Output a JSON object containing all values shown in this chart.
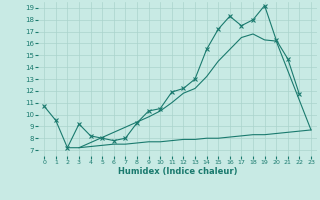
{
  "xlabel": "Humidex (Indice chaleur)",
  "bg_color": "#c8eae4",
  "line_color": "#1a7a6e",
  "grid_color": "#aad4cc",
  "xlim": [
    -0.5,
    23.5
  ],
  "ylim": [
    6.5,
    19.5
  ],
  "xticks": [
    0,
    1,
    2,
    3,
    4,
    5,
    6,
    7,
    8,
    9,
    10,
    11,
    12,
    13,
    14,
    15,
    16,
    17,
    18,
    19,
    20,
    21,
    22,
    23
  ],
  "yticks": [
    7,
    8,
    9,
    10,
    11,
    12,
    13,
    14,
    15,
    16,
    17,
    18,
    19
  ],
  "line1_x": [
    0,
    1,
    2,
    3,
    4,
    5,
    6,
    7,
    8,
    9,
    10,
    11,
    12,
    13,
    14,
    15,
    16,
    17,
    18,
    19,
    20,
    21,
    22
  ],
  "line1_y": [
    10.7,
    9.5,
    7.2,
    9.2,
    8.2,
    8.0,
    7.8,
    8.0,
    9.3,
    10.3,
    10.5,
    11.9,
    12.2,
    13.0,
    15.5,
    17.2,
    18.3,
    17.5,
    18.0,
    19.2,
    16.3,
    14.7,
    11.7
  ],
  "line2_x": [
    3,
    9,
    10,
    11,
    12,
    13,
    14,
    15,
    16,
    17,
    18,
    19,
    20,
    23
  ],
  "line2_y": [
    7.2,
    9.8,
    10.3,
    11.0,
    11.8,
    12.2,
    13.2,
    14.5,
    15.5,
    16.5,
    16.8,
    16.3,
    16.2,
    8.7
  ],
  "line3_x": [
    2,
    3,
    4,
    5,
    6,
    7,
    8,
    9,
    10,
    11,
    12,
    13,
    14,
    15,
    16,
    17,
    18,
    19,
    20,
    21,
    22,
    23
  ],
  "line3_y": [
    7.2,
    7.2,
    7.3,
    7.4,
    7.5,
    7.5,
    7.6,
    7.7,
    7.7,
    7.8,
    7.9,
    7.9,
    8.0,
    8.0,
    8.1,
    8.2,
    8.3,
    8.3,
    8.4,
    8.5,
    8.6,
    8.7
  ]
}
